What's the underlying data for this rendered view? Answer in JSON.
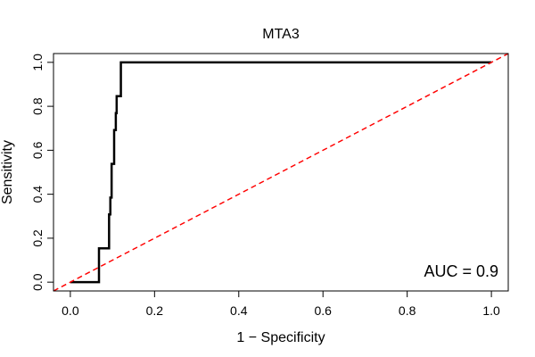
{
  "chart_data": {
    "type": "line",
    "title": "MTA3",
    "xlabel": "1 − Specificity",
    "ylabel": "Sensitivity",
    "xlim": [
      -0.04,
      1.04
    ],
    "ylim": [
      -0.04,
      1.04
    ],
    "x_ticks": [
      0.0,
      0.2,
      0.4,
      0.6,
      0.8,
      1.0
    ],
    "x_tick_labels": [
      "0.0",
      "0.2",
      "0.4",
      "0.6",
      "0.8",
      "1.0"
    ],
    "y_ticks": [
      0.0,
      0.2,
      0.4,
      0.6,
      0.8,
      1.0
    ],
    "y_tick_labels": [
      "0.0",
      "0.2",
      "0.4",
      "0.6",
      "0.8",
      "1.0"
    ],
    "grid": false,
    "annotation": "AUC = 0.9",
    "series": [
      {
        "style": "step",
        "color": "#000000",
        "x": [
          0.0,
          0.068,
          0.068,
          0.092,
          0.092,
          0.095,
          0.095,
          0.098,
          0.098,
          0.104,
          0.104,
          0.108,
          0.108,
          0.11,
          0.11,
          0.113,
          0.113,
          0.12,
          0.12,
          1.0
        ],
        "y": [
          0.0,
          0.0,
          0.154,
          0.154,
          0.308,
          0.308,
          0.385,
          0.385,
          0.538,
          0.538,
          0.692,
          0.692,
          0.769,
          0.769,
          0.846,
          0.846,
          0.846,
          0.846,
          1.0,
          1.0
        ]
      },
      {
        "style": "dashed",
        "color": "#ff0000",
        "x": [
          -0.04,
          1.04
        ],
        "y": [
          -0.04,
          1.04
        ]
      }
    ]
  }
}
